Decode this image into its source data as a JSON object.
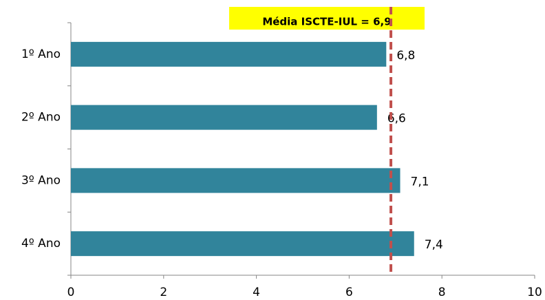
{
  "chart_data": {
    "type": "hbar",
    "categories": [
      "1º Ano",
      "2º Ano",
      "3º Ano",
      "4º Ano"
    ],
    "values": [
      6.8,
      6.6,
      7.1,
      7.4
    ],
    "value_labels": [
      "6,8",
      "6,6",
      "7,1",
      "7,4"
    ],
    "color": "#31849b",
    "xlim": [
      0,
      10
    ],
    "xticks": [
      0,
      2,
      4,
      6,
      8,
      10
    ],
    "reference_line": {
      "value": 6.9,
      "label": "Média ISCTE-IUL = 6,9",
      "color": "#c0504d",
      "label_background": "#ffff00"
    },
    "grid": false
  }
}
